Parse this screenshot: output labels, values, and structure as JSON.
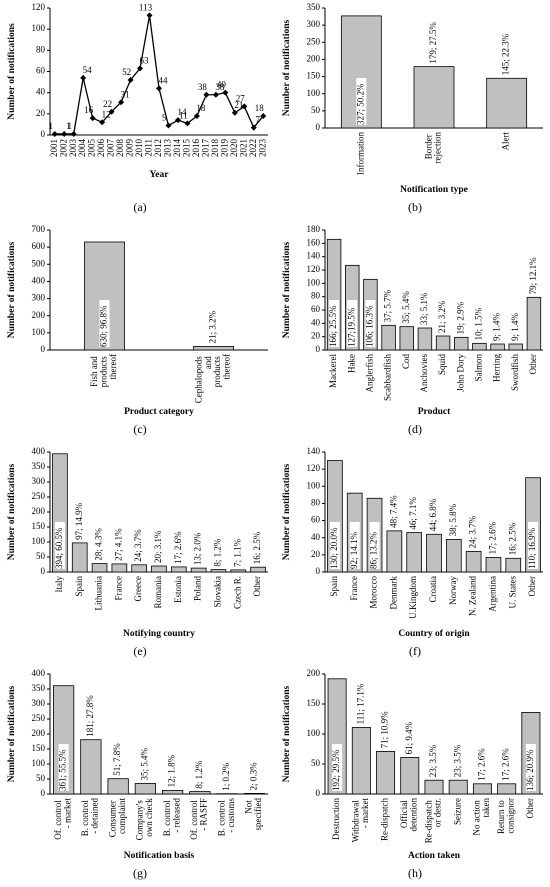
{
  "chart_data": [
    {
      "type": "line",
      "panel_label": "(a)",
      "xlabel": "Year",
      "ylabel": "Number of notifications",
      "color": "#000000",
      "categories": [
        "2001",
        "2002",
        "2003",
        "2004",
        "2005",
        "2006",
        "2007",
        "2008",
        "2009",
        "2010",
        "2011",
        "2012",
        "2013",
        "2014",
        "2015",
        "2016",
        "2017",
        "2018",
        "2019",
        "2020",
        "2021",
        "2022",
        "2023"
      ],
      "values": [
        1,
        1,
        1,
        54,
        16,
        12,
        22,
        31,
        52,
        63,
        113,
        44,
        9,
        14,
        11,
        18,
        38,
        38,
        40,
        21,
        27,
        7,
        18
      ],
      "ylim": [
        0,
        120
      ],
      "yticks": [
        0,
        20,
        40,
        60,
        80,
        100,
        120
      ]
    },
    {
      "type": "bar",
      "panel_label": "(b)",
      "xlabel": "Notification type",
      "ylabel": "Number of notifications",
      "color": "#c0c0c0",
      "categories": [
        "Information",
        "Border rejection",
        "Alert"
      ],
      "values": [
        327,
        179,
        145
      ],
      "value_labels": [
        "327; 50.2%",
        "179; 27.5%",
        "145; 22.3%"
      ],
      "ylim": [
        0,
        350
      ],
      "yticks": [
        0,
        50,
        100,
        150,
        200,
        250,
        300,
        350
      ]
    },
    {
      "type": "bar",
      "panel_label": "(c)",
      "xlabel": "Product category",
      "ylabel": "Number of notifications",
      "color": "#c0c0c0",
      "categories": [
        "Fish and products thereof",
        "Cephalopods and products thereof"
      ],
      "values": [
        630,
        21
      ],
      "value_labels": [
        "630; 96.8%",
        "21; 3.2%"
      ],
      "ylim": [
        0,
        700
      ],
      "yticks": [
        0,
        100,
        200,
        300,
        400,
        500,
        600,
        700
      ]
    },
    {
      "type": "bar",
      "panel_label": "(d)",
      "xlabel": "Product",
      "ylabel": "Number of notifications",
      "color": "#c0c0c0",
      "categories": [
        "Mackerel",
        "Hake",
        "Anglerfish",
        "Scabbardfish",
        "Cod",
        "Anchovies",
        "Squid",
        "John Dory",
        "Salmon",
        "Herring",
        "Swordfish",
        "Other"
      ],
      "values": [
        166,
        127,
        106,
        37,
        35,
        33,
        21,
        19,
        10,
        9,
        9,
        79
      ],
      "value_labels": [
        "166; 25.5%",
        "127;19.5%",
        "106; 16.3%",
        "37; 5.7%",
        "35; 5.4%",
        "33; 5.1%",
        "21; 3.2%",
        "19; 2.9%",
        "10; 1.5%",
        "9; 1.4%",
        "9; 1.4%",
        "79; 12.1%"
      ],
      "ylim": [
        0,
        180
      ],
      "yticks": [
        0,
        20,
        40,
        60,
        80,
        100,
        120,
        140,
        160,
        180
      ]
    },
    {
      "type": "bar",
      "panel_label": "(e)",
      "xlabel": "Notifying country",
      "ylabel": "Number of notifications",
      "color": "#c0c0c0",
      "categories": [
        "Italy",
        "Spain",
        "Lithuania",
        "France",
        "Greece",
        "Romania",
        "Estonia",
        "Poland",
        "Slovakia",
        "Czech R.",
        "Other"
      ],
      "values": [
        394,
        97,
        28,
        27,
        24,
        20,
        17,
        13,
        8,
        7,
        16
      ],
      "value_labels": [
        "394; 60.5%",
        "97; 14.9%",
        "28; 4.3%",
        "27; 4.1%",
        "24; 3.7%",
        "20; 3.1%",
        "17; 2.6%",
        "13; 2.0%",
        "8; 1.2%",
        "7; 1.1%",
        "16; 2.5%"
      ],
      "ylim": [
        0,
        400
      ],
      "yticks": [
        0,
        50,
        100,
        150,
        200,
        250,
        300,
        350,
        400
      ]
    },
    {
      "type": "bar",
      "panel_label": "(f)",
      "xlabel": "Country of origin",
      "ylabel": "Number of notifications",
      "color": "#c0c0c0",
      "categories": [
        "Spain",
        "France",
        "Morocco",
        "Denmark",
        "U.Kingdom",
        "Croatia",
        "Norway",
        "N. Zealand",
        "Argentina",
        "U. States",
        "Other"
      ],
      "values": [
        130,
        92,
        86,
        48,
        46,
        44,
        38,
        24,
        17,
        16,
        110
      ],
      "value_labels": [
        "130; 20.0%",
        "92; 14.1%",
        "86; 13.2%",
        "48; 7.4%",
        "46; 7.1%",
        "44; 6.8%",
        "38; 5.8%",
        "24; 3.7%",
        "17; 2.6%",
        "16; 2.5%",
        "110; 16.9%"
      ],
      "ylim": [
        0,
        140
      ],
      "yticks": [
        0,
        20,
        40,
        60,
        80,
        100,
        120,
        140
      ]
    },
    {
      "type": "bar",
      "panel_label": "(g)",
      "xlabel": "Notification basis",
      "ylabel": "Number of notifications",
      "color": "#c0c0c0",
      "categories": [
        "Of. control - market",
        "B. control - detained",
        "Consumer complaint",
        "Company's own check",
        "B. control - released",
        "Of. control - RASFF",
        "B. control - customs",
        "Not specified"
      ],
      "values": [
        361,
        181,
        51,
        35,
        12,
        8,
        1,
        2
      ],
      "value_labels": [
        "361; 55.5%",
        "181; 27.8%",
        "51; 7.8%",
        "35; 5.4%",
        "12; 1.8%",
        "8; 1.2%",
        "1; 0.2%",
        "2; 0.3%"
      ],
      "ylim": [
        0,
        400
      ],
      "yticks": [
        0,
        50,
        100,
        150,
        200,
        250,
        300,
        350,
        400
      ]
    },
    {
      "type": "bar",
      "panel_label": "(h)",
      "xlabel": "Action taken",
      "ylabel": "Number of notifications",
      "color": "#c0c0c0",
      "categories": [
        "Destruction",
        "Withdrawal - market",
        "Re-dispatch",
        "Official detention",
        "Re-dispatch or destr.",
        "Seizure",
        "No action taken",
        "Return to consignor",
        "Other"
      ],
      "values": [
        192,
        111,
        71,
        61,
        23,
        23,
        17,
        17,
        136
      ],
      "value_labels": [
        "192; 29.5%",
        "111; 17.1%",
        "71; 10.9%",
        "61; 9.4%",
        "23; 3.5%",
        "23; 3.5%",
        "17; 2.6%",
        "17; 2.6%",
        "136; 20.9%"
      ],
      "ylim": [
        0,
        200
      ],
      "yticks": [
        0,
        50,
        100,
        150,
        200
      ]
    }
  ]
}
